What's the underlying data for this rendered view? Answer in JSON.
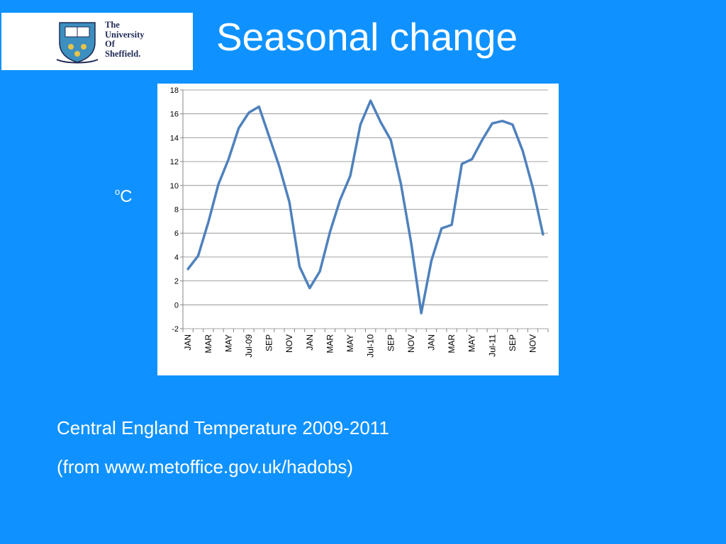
{
  "logo": {
    "lines": [
      "The",
      "University",
      "Of",
      "Sheffield."
    ],
    "icon": "university-crest-icon"
  },
  "title": "Seasonal change",
  "unit_label": {
    "superscript": "o",
    "text": "C"
  },
  "caption": {
    "line1": "Central England Temperature 2009-2011",
    "line2": "(from www.metoffice.gov.uk/hadobs)"
  },
  "colors": {
    "background": "#0f92ff",
    "line": "#4f81bd",
    "panel": "#ffffff",
    "axis": "#868686"
  },
  "chart_data": {
    "type": "line",
    "title": "",
    "xlabel": "",
    "ylabel": "",
    "ylim": [
      -2,
      18
    ],
    "yticks": [
      -2,
      0,
      2,
      4,
      6,
      8,
      10,
      12,
      14,
      16,
      18
    ],
    "grid": "horizontal",
    "x_tick_labels": [
      "JAN",
      "MAR",
      "MAY",
      "Jul-09",
      "SEP",
      "NOV",
      "JAN",
      "MAR",
      "MAY",
      "Jul-10",
      "SEP",
      "NOV",
      "JAN",
      "MAR",
      "MAY",
      "Jul-11",
      "SEP",
      "NOV"
    ],
    "x": [
      "Jan-09",
      "Feb-09",
      "Mar-09",
      "Apr-09",
      "May-09",
      "Jun-09",
      "Jul-09",
      "Aug-09",
      "Sep-09",
      "Oct-09",
      "Nov-09",
      "Dec-09",
      "Jan-10",
      "Feb-10",
      "Mar-10",
      "Apr-10",
      "May-10",
      "Jun-10",
      "Jul-10",
      "Aug-10",
      "Sep-10",
      "Oct-10",
      "Nov-10",
      "Dec-10",
      "Jan-11",
      "Feb-11",
      "Mar-11",
      "Apr-11",
      "May-11",
      "Jun-11",
      "Jul-11",
      "Aug-11",
      "Sep-11",
      "Oct-11",
      "Nov-11",
      "Dec-11"
    ],
    "series": [
      {
        "values": [
          3.0,
          4.1,
          6.9,
          10.1,
          12.2,
          14.8,
          16.1,
          16.6,
          14.1,
          11.6,
          8.6,
          3.2,
          1.4,
          2.8,
          6.1,
          8.8,
          10.8,
          15.1,
          17.1,
          15.3,
          13.8,
          10.1,
          5.2,
          -0.7,
          3.7,
          6.4,
          6.7,
          11.8,
          12.2,
          13.8,
          15.2,
          15.4,
          15.1,
          12.9,
          9.8,
          5.9
        ]
      }
    ]
  }
}
